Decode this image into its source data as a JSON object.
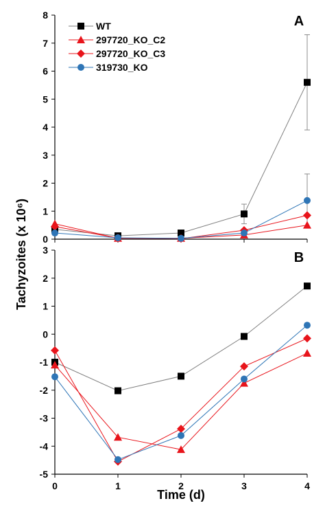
{
  "chart_data": [
    {
      "type": "line",
      "panel_label": "A",
      "x": [
        0,
        1,
        2,
        3,
        4
      ],
      "xlim": [
        0,
        4
      ],
      "ylim": [
        0,
        8
      ],
      "yticks": [
        0,
        1,
        2,
        3,
        4,
        5,
        6,
        7,
        8
      ],
      "legend_position": "top-left",
      "grid": false,
      "series": [
        {
          "name": "WT",
          "values": [
            0.35,
            0.12,
            0.22,
            0.9,
            5.6
          ],
          "color": "#000000",
          "line_color": "#7f7f7f",
          "marker": "square",
          "error": [
            0,
            0,
            0,
            0.35,
            1.7
          ]
        },
        {
          "name": "297720_KO_C2",
          "values": [
            0.55,
            0.03,
            0.03,
            0.15,
            0.5
          ],
          "color": "#e8141b",
          "line_color": "#e8141b",
          "marker": "triangle",
          "error": [
            0,
            0,
            0,
            0,
            0
          ]
        },
        {
          "name": "297720_KO_C3",
          "values": [
            0.45,
            0.04,
            0.02,
            0.32,
            0.85
          ],
          "color": "#e8141b",
          "line_color": "#e8141b",
          "marker": "diamond",
          "error": [
            0,
            0,
            0,
            0,
            0
          ]
        },
        {
          "name": "319730_KO",
          "values": [
            0.22,
            0.05,
            0.03,
            0.22,
            1.38
          ],
          "color": "#2e75b6",
          "line_color": "#2e75b6",
          "marker": "circle",
          "error": [
            0,
            0,
            0,
            0,
            0.95
          ]
        }
      ]
    },
    {
      "type": "line",
      "panel_label": "B",
      "x": [
        0,
        1,
        2,
        3,
        4
      ],
      "xlim": [
        0,
        4
      ],
      "ylim": [
        -5,
        3
      ],
      "yticks": [
        -5,
        -4,
        -3,
        -2,
        -1,
        0,
        1,
        2,
        3
      ],
      "xticks": [
        "0",
        "1",
        "2",
        "3",
        "4"
      ],
      "grid": false,
      "series": [
        {
          "values": [
            -1.0,
            -2.02,
            -1.5,
            -0.08,
            1.72
          ],
          "color": "#000000",
          "line_color": "#7f7f7f",
          "marker": "square"
        },
        {
          "values": [
            -1.1,
            -3.68,
            -4.12,
            -1.75,
            -0.68
          ],
          "color": "#e8141b",
          "line_color": "#e8141b",
          "marker": "triangle"
        },
        {
          "values": [
            -0.58,
            -4.55,
            -3.38,
            -1.15,
            -0.15
          ],
          "color": "#e8141b",
          "line_color": "#e8141b",
          "marker": "diamond"
        },
        {
          "values": [
            -1.52,
            -4.48,
            -3.62,
            -1.6,
            0.32
          ],
          "color": "#2e75b6",
          "line_color": "#2e75b6",
          "marker": "circle"
        }
      ]
    }
  ],
  "ylabel": "Tachyzoites (x 10⁶)",
  "xlabel": "Time (d)"
}
